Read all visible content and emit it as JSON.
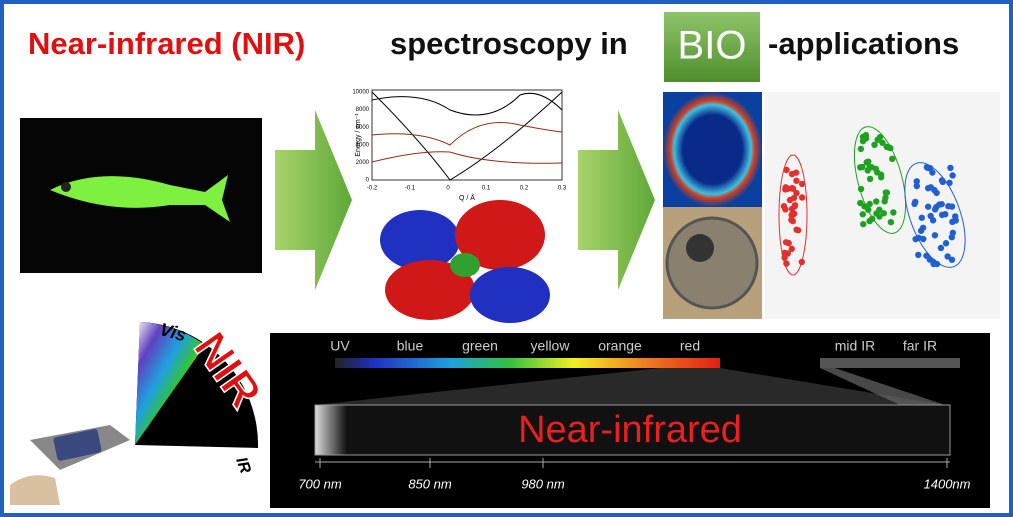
{
  "header": {
    "highlight": "Near-infrared (NIR)",
    "middle": "spectroscopy in",
    "badge": "BIO",
    "tail": "-applications"
  },
  "energy_plot": {
    "y_label": "Energy / cm⁻¹",
    "x_label": "Q / Å",
    "yticks": [
      "0",
      "2000",
      "4000",
      "6000",
      "8000",
      "10000"
    ],
    "xticks": [
      "-0.2",
      "-0.1",
      "0",
      "0.1",
      "0.2",
      "0.3"
    ]
  },
  "fan": {
    "vis": "Vis",
    "nir": "NIR",
    "ir": "IR"
  },
  "spectrum": {
    "bands": [
      "UV",
      "blue",
      "green",
      "yellow",
      "orange",
      "red"
    ],
    "ir_bands": [
      "mid IR",
      "far IR"
    ],
    "label": "Near-infrared",
    "scale": [
      "700 nm",
      "850 nm",
      "980 nm",
      "1400nm"
    ]
  }
}
